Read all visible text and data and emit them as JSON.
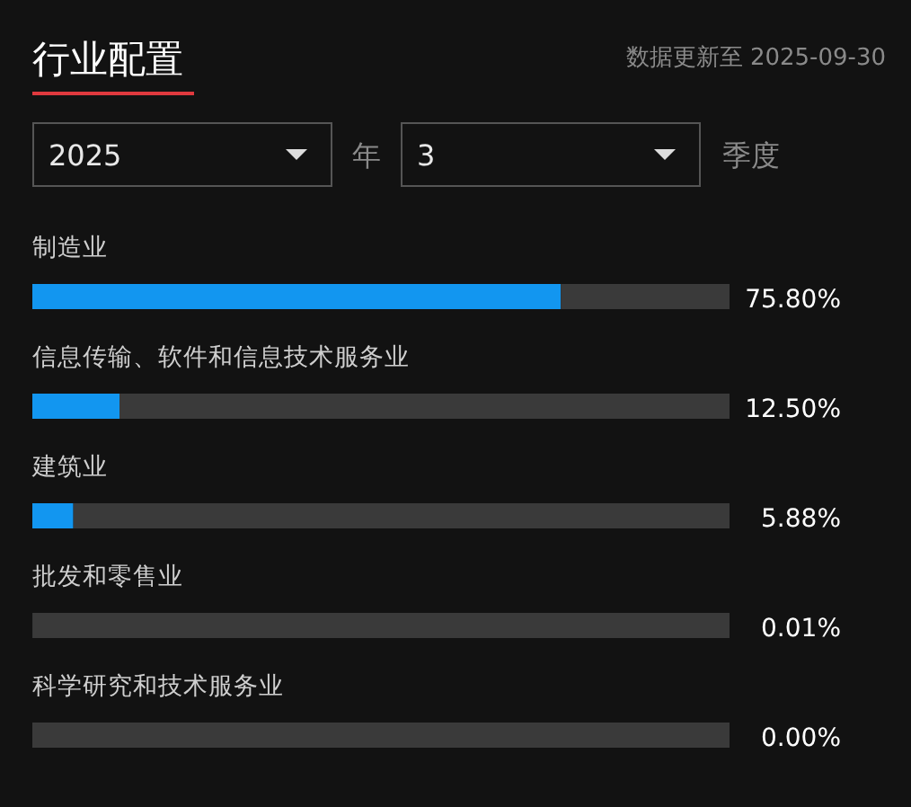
{
  "chart_data": {
    "type": "bar",
    "orientation": "horizontal",
    "stacked": true,
    "title": "行业配置",
    "subtitle": "数据更新至 2025-09-30",
    "annotations": [
      "2025",
      "年",
      "3",
      "季度"
    ],
    "categories": [
      "制造业",
      "信息传输、软件和信息技术服务业",
      "建筑业",
      "批发和零售业",
      "科学研究和技术服务业"
    ],
    "series": [
      {
        "color": "#1296f0",
        "values": [
          75.8,
          12.5,
          5.88,
          0.01,
          0.0
        ],
        "value_labels": [
          "75.80%",
          "12.50%",
          "5.88%",
          "0.01%",
          "0.00%"
        ]
      },
      {
        "color": "#3a3a3a",
        "values": [
          24.2,
          87.5,
          94.12,
          99.99,
          100.0
        ]
      }
    ],
    "xlim": [
      0,
      100
    ]
  }
}
